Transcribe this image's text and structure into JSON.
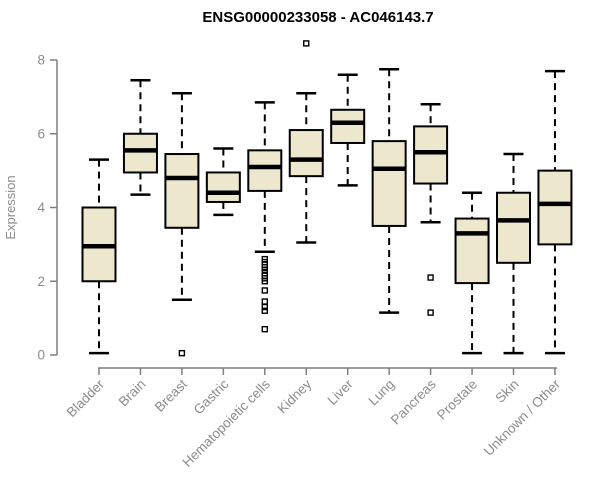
{
  "chart_data": {
    "type": "boxplot",
    "title": "ENSG00000233058 - AC046143.7",
    "xlabel": "",
    "ylabel": "Expression",
    "ylim": [
      0,
      8
    ],
    "yticks": [
      0,
      2,
      4,
      6,
      8
    ],
    "grid": false,
    "legend": null,
    "categories": [
      "Bladder",
      "Brain",
      "Breast",
      "Gastric",
      "Hematopoietic cells",
      "Kidney",
      "Liver",
      "Lung",
      "Pancreas",
      "Prostate",
      "Skin",
      "Unknown / Other"
    ],
    "series": [
      {
        "name": "Bladder",
        "low": 0.05,
        "q1": 2.0,
        "median": 2.95,
        "q3": 4.0,
        "high": 5.3,
        "outliers": []
      },
      {
        "name": "Brain",
        "low": 4.35,
        "q1": 4.95,
        "median": 5.55,
        "q3": 6.0,
        "high": 7.45,
        "outliers": []
      },
      {
        "name": "Breast",
        "low": 1.5,
        "q1": 3.45,
        "median": 4.8,
        "q3": 5.45,
        "high": 7.1,
        "outliers": [
          0.05
        ]
      },
      {
        "name": "Gastric",
        "low": 3.8,
        "q1": 4.15,
        "median": 4.4,
        "q3": 4.95,
        "high": 5.6,
        "outliers": []
      },
      {
        "name": "Hematopoietic cells",
        "low": 2.8,
        "q1": 4.45,
        "median": 5.1,
        "q3": 5.55,
        "high": 6.85,
        "outliers": [
          2.6,
          2.52,
          2.45,
          2.38,
          2.3,
          2.22,
          2.15,
          2.08,
          2.0,
          1.75,
          1.45,
          1.3,
          1.2,
          0.7
        ]
      },
      {
        "name": "Kidney",
        "low": 3.05,
        "q1": 4.85,
        "median": 5.3,
        "q3": 6.1,
        "high": 7.1,
        "outliers": [
          8.45
        ]
      },
      {
        "name": "Liver",
        "low": 4.6,
        "q1": 5.75,
        "median": 6.3,
        "q3": 6.65,
        "high": 7.6,
        "outliers": []
      },
      {
        "name": "Lung",
        "low": 1.15,
        "q1": 3.5,
        "median": 5.05,
        "q3": 5.8,
        "high": 7.75,
        "outliers": []
      },
      {
        "name": "Pancreas",
        "low": 3.6,
        "q1": 4.65,
        "median": 5.5,
        "q3": 6.2,
        "high": 6.8,
        "outliers": [
          2.1,
          1.15
        ]
      },
      {
        "name": "Prostate",
        "low": 0.05,
        "q1": 1.95,
        "median": 3.3,
        "q3": 3.7,
        "high": 4.4,
        "outliers": []
      },
      {
        "name": "Skin",
        "low": 0.05,
        "q1": 2.5,
        "median": 3.65,
        "q3": 4.4,
        "high": 5.45,
        "outliers": []
      },
      {
        "name": "Unknown / Other",
        "low": 0.05,
        "q1": 3.0,
        "median": 4.1,
        "q3": 5.0,
        "high": 7.7,
        "outliers": []
      }
    ],
    "colors": {
      "box_fill": "#EDE7CD",
      "box_border": "#000000",
      "median": "#000000",
      "whisker": "#000000",
      "outlier": "#000000",
      "axis": "#7F7F7F",
      "label_text": "#8C8C8C",
      "title_text": "#000000",
      "background": "#FFFFFF"
    }
  }
}
